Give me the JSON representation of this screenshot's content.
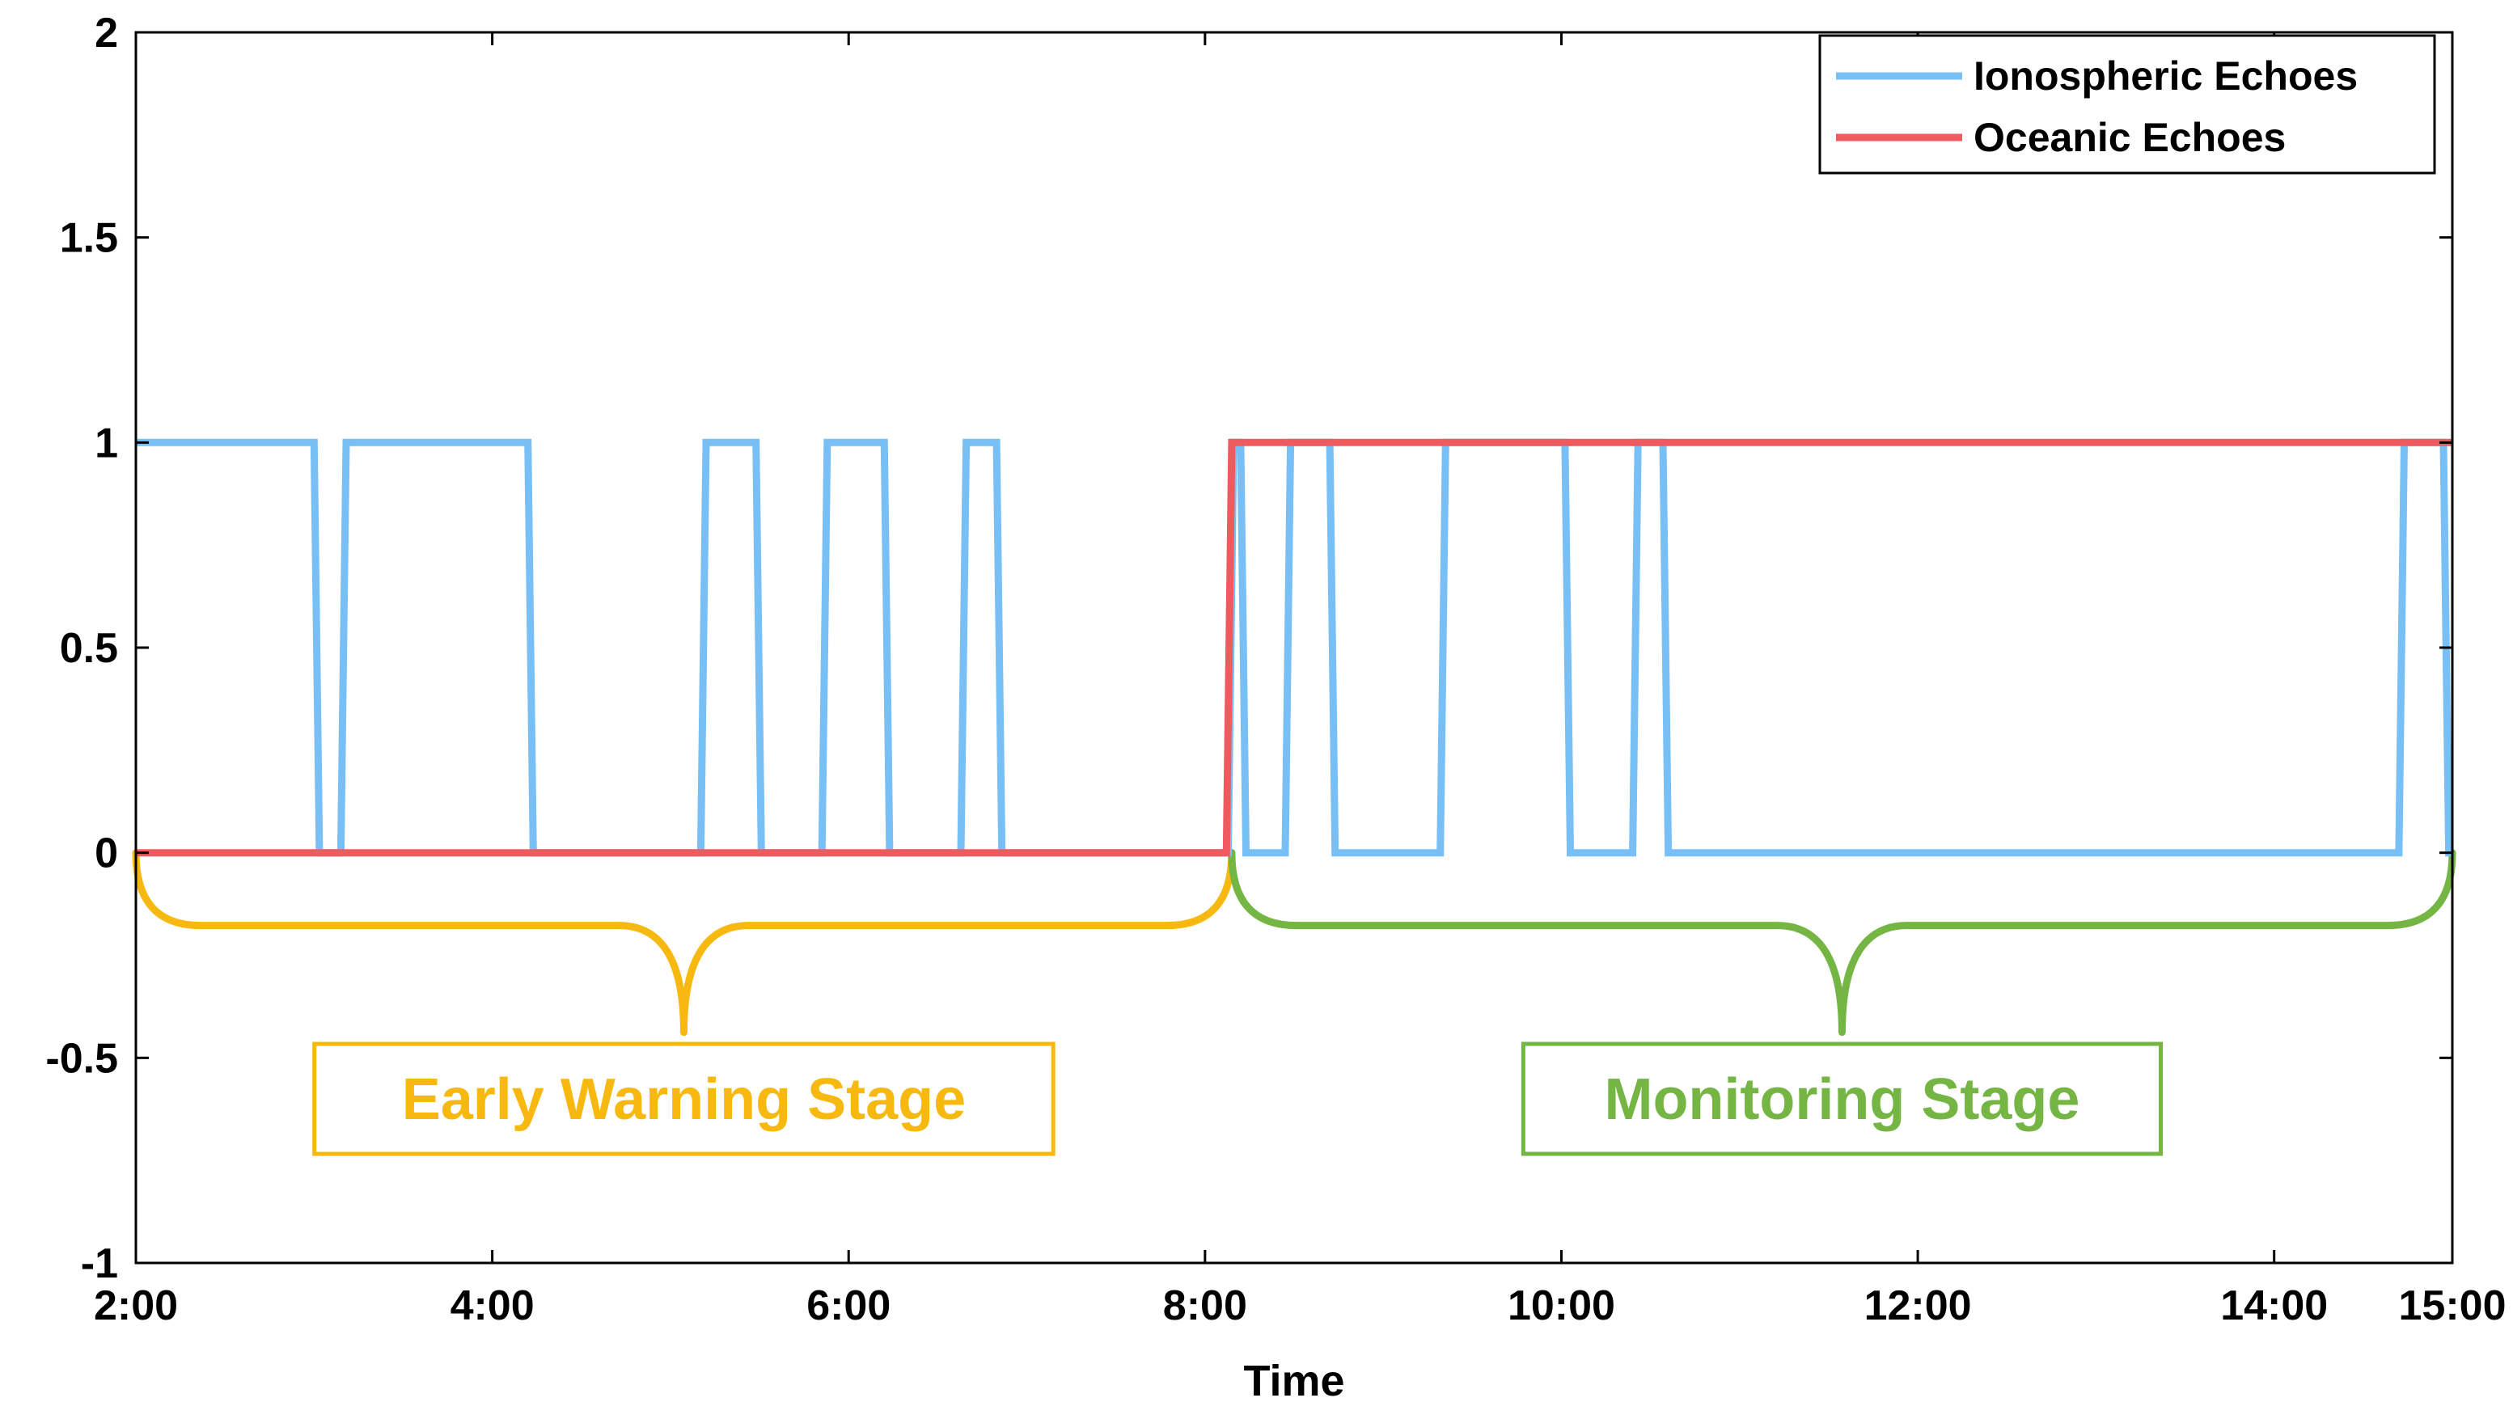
{
  "chart_data": {
    "type": "line",
    "title": "",
    "xlabel": "Time",
    "ylabel": "",
    "xlim": [
      2,
      15
    ],
    "ylim": [
      -1,
      2
    ],
    "x_ticks": [
      {
        "value": 2,
        "label": "2:00"
      },
      {
        "value": 4,
        "label": "4:00"
      },
      {
        "value": 6,
        "label": "6:00"
      },
      {
        "value": 8,
        "label": "8:00"
      },
      {
        "value": 10,
        "label": "10:00"
      },
      {
        "value": 12,
        "label": "12:00"
      },
      {
        "value": 14,
        "label": "14:00"
      },
      {
        "value": 15,
        "label": "15:00"
      }
    ],
    "y_ticks": [
      {
        "value": -1,
        "label": "-1"
      },
      {
        "value": -0.5,
        "label": "-0.5"
      },
      {
        "value": 0,
        "label": "0"
      },
      {
        "value": 0.5,
        "label": "0.5"
      },
      {
        "value": 1,
        "label": "1"
      },
      {
        "value": 1.5,
        "label": "1.5"
      },
      {
        "value": 2,
        "label": "2"
      }
    ],
    "grid": false,
    "legend_position": "top-right",
    "series": [
      {
        "name": "Ionospheric Echoes",
        "color": "#77bff5",
        "x": [
          2.0,
          3.0,
          3.03,
          3.15,
          3.18,
          4.2,
          4.23,
          5.17,
          5.2,
          5.48,
          5.51,
          5.85,
          5.88,
          6.2,
          6.23,
          6.63,
          6.66,
          6.83,
          6.86,
          8.13,
          8.16,
          8.2,
          8.23,
          8.45,
          8.48,
          8.7,
          8.73,
          9.32,
          9.35,
          10.02,
          10.05,
          10.4,
          10.43,
          10.57,
          10.6,
          14.7,
          14.73,
          14.95,
          14.98,
          15.0
        ],
        "y": [
          1,
          1,
          0,
          0,
          1,
          1,
          0,
          0,
          1,
          1,
          0,
          0,
          1,
          1,
          0,
          0,
          1,
          1,
          0,
          0,
          1,
          1,
          0,
          0,
          1,
          1,
          0,
          0,
          1,
          1,
          0,
          0,
          1,
          1,
          0,
          0,
          1,
          1,
          0,
          0
        ]
      },
      {
        "name": "Oceanic Echoes",
        "color": "#ef5a5f",
        "x": [
          2.0,
          8.12,
          8.15,
          15.0
        ],
        "y": [
          0,
          0,
          1,
          1
        ]
      }
    ],
    "annotations": [
      {
        "text": "Early Warning Stage",
        "color": "#f7b90f",
        "x_range": [
          2.0,
          8.15
        ],
        "y_brace": 0,
        "label_y": -0.6
      },
      {
        "text": "Monitoring Stage",
        "color": "#74b543",
        "x_range": [
          8.15,
          15.0
        ],
        "y_brace": 0,
        "label_y": -0.6
      }
    ]
  }
}
